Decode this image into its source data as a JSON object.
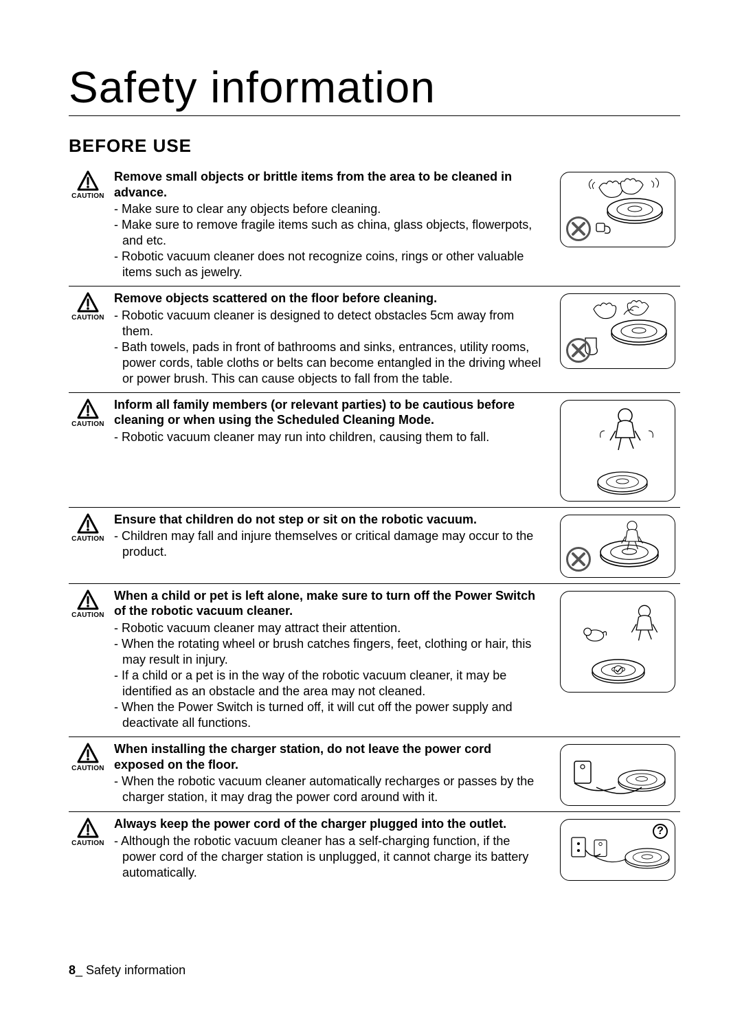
{
  "page": {
    "title": "Safety information",
    "section": "BEFORE USE",
    "footer_page": "8",
    "footer_sep": "_",
    "footer_text": " Safety information"
  },
  "caution_label": "CAUTION",
  "items": [
    {
      "headline": "Remove small objects or brittle items from the area to be cleaned in advance.",
      "bullets": [
        "Make sure to clear any objects before cleaning.",
        "Make sure to remove fragile items such as china, glass objects, flowerpots, and etc.",
        "Robotic vacuum cleaner does not recognize coins, rings or other valuable items such as jewelry."
      ],
      "illus": {
        "variant": "standard",
        "x": true
      }
    },
    {
      "headline": "Remove objects scattered on the floor before cleaning.",
      "bullets": [
        "Robotic vacuum cleaner is designed to detect obstacles 5cm away from them.",
        "Bath towels, pads in front of bathrooms and sinks, entrances, utility rooms, power cords, table cloths or belts can become entangled in the driving wheel or power brush. This can cause objects to fall from the table."
      ],
      "illus": {
        "variant": "standard",
        "x": true
      }
    },
    {
      "headline": "Inform all family members (or relevant parties) to be cautious before cleaning or when using the Scheduled Cleaning Mode.",
      "bullets": [
        "Robotic vacuum cleaner may run into children, causing them to fall."
      ],
      "illus": {
        "variant": "tall",
        "x": false
      }
    },
    {
      "headline": "Ensure that children do not step or sit on the robotic vacuum.",
      "bullets": [
        "Children may fall and injure themselves or critical damage may occur to the product."
      ],
      "illus": {
        "variant": "small",
        "x": true
      }
    },
    {
      "headline": "When a child or pet is left alone, make sure to turn off the Power Switch of the robotic vacuum cleaner.",
      "bullets": [
        "Robotic vacuum cleaner may attract their attention.",
        "When the rotating wheel or brush catches fingers, feet, clothing or hair, this may result in injury.",
        "If a child or a pet is in the way of the robotic vacuum cleaner, it may be identified as an obstacle and the area may not cleaned.",
        "When the Power Switch is turned off, it will cut off the power supply and deactivate all functions."
      ],
      "illus": {
        "variant": "tall",
        "x": false
      }
    },
    {
      "headline": "When installing the charger station, do not leave the power cord exposed on the floor.",
      "bullets": [
        "When the robotic vacuum cleaner automatically recharges or passes by the charger station, it may drag the power cord around with it."
      ],
      "illus": {
        "variant": "charger",
        "x": false
      }
    },
    {
      "headline": "Always keep the power cord of the charger plugged into the outlet.",
      "bullets": [
        "Although the robotic vacuum cleaner has a self-charging function, if the power cord of the charger station is unplugged, it cannot charge its battery automatically."
      ],
      "illus": {
        "variant": "charger",
        "x": false,
        "q": true
      }
    }
  ]
}
